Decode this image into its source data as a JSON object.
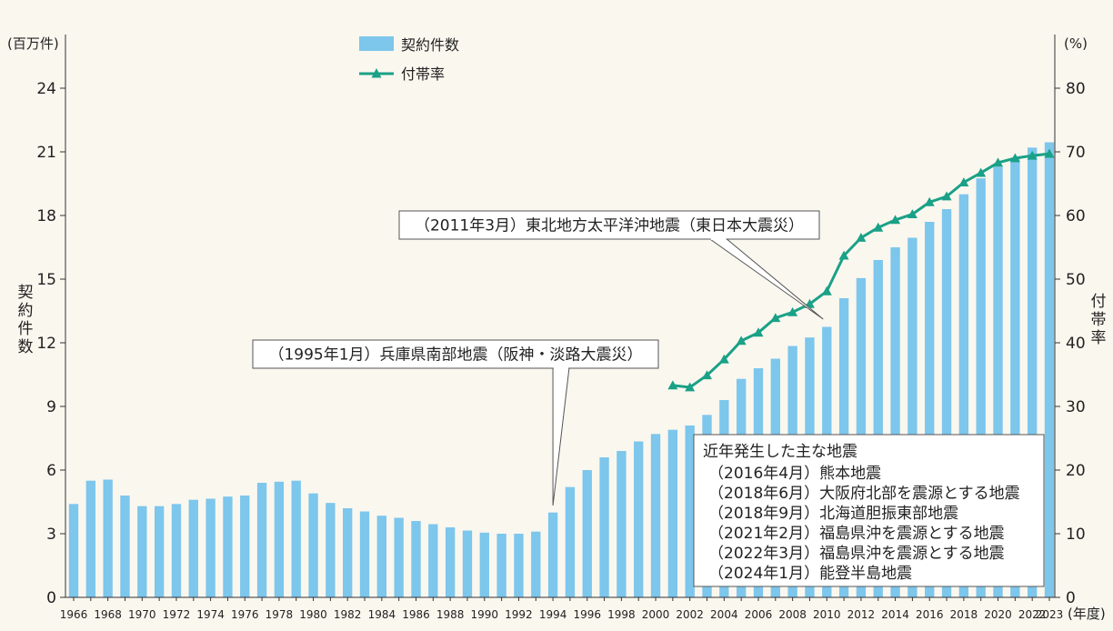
{
  "chart_data": {
    "type": "bar",
    "title": "",
    "x_unit": "(年度)",
    "y_left": {
      "label": "契約件数",
      "unit": "(百万件)",
      "range": [
        0,
        24
      ],
      "ticks": [
        0,
        3,
        6,
        9,
        12,
        15,
        18,
        21,
        24
      ]
    },
    "y_right": {
      "label": "付帯率",
      "unit": "(%)",
      "range": [
        0,
        80
      ],
      "ticks": [
        0,
        10,
        20,
        30,
        40,
        50,
        60,
        70,
        80
      ]
    },
    "x": [
      1966,
      1967,
      1968,
      1969,
      1970,
      1971,
      1972,
      1973,
      1974,
      1975,
      1976,
      1977,
      1978,
      1979,
      1980,
      1981,
      1982,
      1983,
      1984,
      1985,
      1986,
      1987,
      1988,
      1989,
      1990,
      1991,
      1992,
      1993,
      1994,
      1995,
      1996,
      1997,
      1998,
      1999,
      2000,
      2001,
      2002,
      2003,
      2004,
      2005,
      2006,
      2007,
      2008,
      2009,
      2010,
      2011,
      2012,
      2013,
      2014,
      2015,
      2016,
      2017,
      2018,
      2019,
      2020,
      2021,
      2022,
      2023
    ],
    "x_tick_labels": [
      "1966",
      "1968",
      "1970",
      "1972",
      "1974",
      "1976",
      "1978",
      "1980",
      "1982",
      "1984",
      "1986",
      "1988",
      "1990",
      "1992",
      "1994",
      "1996",
      "1998",
      "2000",
      "2002",
      "2004",
      "2006",
      "2008",
      "2010",
      "2012",
      "2014",
      "2016",
      "2018",
      "2020",
      "2022",
      "2023"
    ],
    "series": [
      {
        "name": "契約件数",
        "type": "bar",
        "axis": "left",
        "color": "#7dc6ec",
        "values": [
          4.4,
          5.5,
          5.55,
          4.8,
          4.3,
          4.3,
          4.4,
          4.6,
          4.65,
          4.75,
          4.8,
          5.4,
          5.45,
          5.5,
          4.9,
          4.45,
          4.2,
          4.05,
          3.85,
          3.75,
          3.6,
          3.45,
          3.3,
          3.15,
          3.05,
          3.0,
          3.0,
          3.1,
          4.0,
          5.2,
          6.0,
          6.6,
          6.9,
          7.35,
          7.7,
          7.9,
          8.1,
          8.6,
          9.3,
          10.3,
          10.8,
          11.25,
          11.85,
          12.25,
          12.75,
          14.1,
          15.05,
          15.9,
          16.5,
          16.95,
          17.7,
          18.3,
          19.0,
          19.75,
          20.3,
          20.7,
          21.2,
          21.45
        ]
      },
      {
        "name": "付帯率",
        "type": "line",
        "axis": "right",
        "color": "#1aa187",
        "x": [
          2001,
          2002,
          2003,
          2004,
          2005,
          2006,
          2007,
          2008,
          2009,
          2010,
          2011,
          2012,
          2013,
          2014,
          2015,
          2016,
          2017,
          2018,
          2019,
          2020,
          2021,
          2022,
          2023
        ],
        "values": [
          33.3,
          33.0,
          34.9,
          37.4,
          40.3,
          41.6,
          43.9,
          44.8,
          46.1,
          48.1,
          53.7,
          56.5,
          58.1,
          59.3,
          60.2,
          62.1,
          63.0,
          65.2,
          66.7,
          68.3,
          69.0,
          69.4,
          69.7
        ]
      }
    ],
    "legend_placement": "top-center",
    "annotations": [
      {
        "id": "ann-1995",
        "text": "（1995年1月）兵庫県南部地震（阪神・淡路大震災）",
        "target_year": 1994
      },
      {
        "id": "ann-2011",
        "text": "（2011年3月）東北地方太平洋沖地震（東日本大震災）",
        "target_year": 2010
      }
    ],
    "recent_box": {
      "title": "近年発生した主な地震",
      "items": [
        "（2016年4月）熊本地震",
        "（2018年6月）大阪府北部を震源とする地震",
        "（2018年9月）北海道胆振東部地震",
        "（2021年2月）福島県沖を震源とする地震",
        "（2022年3月）福島県沖を震源とする地震",
        "（2024年1月）能登半島地震"
      ]
    },
    "grid": false
  }
}
